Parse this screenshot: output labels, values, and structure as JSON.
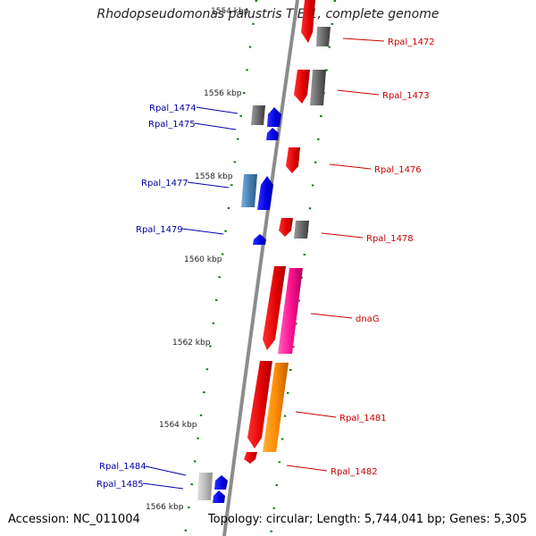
{
  "title": "Rhodopseudomonas palustris TIE-1, complete genome",
  "footer": {
    "accession": "Accession: NC_011004",
    "topology": "Topology: circular; Length: 5,744,041 bp; Genes: 5,305"
  },
  "colors": {
    "backbone": "#8c8c8c",
    "tick": "#1a7a1a",
    "plus_strand_label": "#cc0000",
    "minus_strand_label": "#0000aa"
  },
  "kbp_labels": [
    "1554 kbp",
    "1556 kbp",
    "1558 kbp",
    "1560 kbp",
    "1562 kbp",
    "1564 kbp",
    "1566 kbp"
  ],
  "genes_right": [
    {
      "id": "rpal-1472",
      "label": "Rpal_1472"
    },
    {
      "id": "rpal-1473",
      "label": "Rpal_1473"
    },
    {
      "id": "rpal-1476",
      "label": "Rpal_1476"
    },
    {
      "id": "rpal-1478",
      "label": "Rpal_1478"
    },
    {
      "id": "dnag",
      "label": "dnaG"
    },
    {
      "id": "rpal-1481",
      "label": "Rpal_1481"
    },
    {
      "id": "rpal-1482",
      "label": "Rpal_1482"
    }
  ],
  "genes_left": [
    {
      "id": "rpal-1474",
      "label": "Rpal_1474"
    },
    {
      "id": "rpal-1475",
      "label": "Rpal_1475"
    },
    {
      "id": "rpal-1477",
      "label": "Rpal_1477"
    },
    {
      "id": "rpal-1479",
      "label": "Rpal_1479"
    },
    {
      "id": "rpal-1484",
      "label": "Rpal_1484"
    },
    {
      "id": "rpal-1485",
      "label": "Rpal_1485"
    }
  ]
}
